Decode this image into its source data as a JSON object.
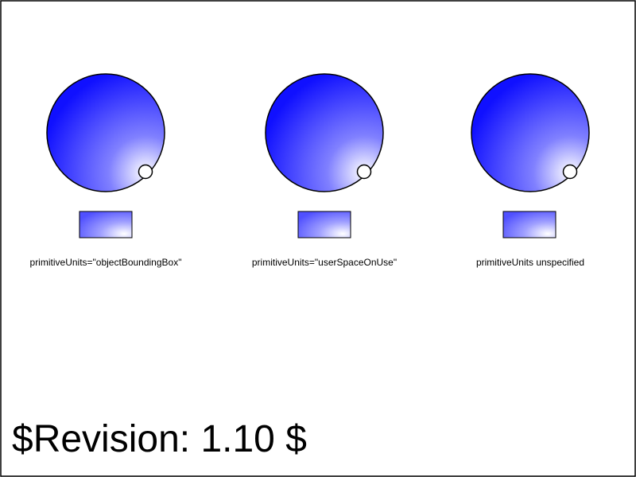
{
  "colors": {
    "light_start": "#ffffff",
    "light_mid": "#8080ff",
    "dark_end": "#1010ff",
    "outline": "#000000",
    "marker_fill": "#ffffff"
  },
  "panels": [
    {
      "caption": "primitiveUnits=\"objectBoundingBox\""
    },
    {
      "caption": "primitiveUnits=\"userSpaceOnUse\""
    },
    {
      "caption": "primitiveUnits unspecified"
    }
  ],
  "footer": {
    "revision": "$Revision: 1.10 $"
  }
}
